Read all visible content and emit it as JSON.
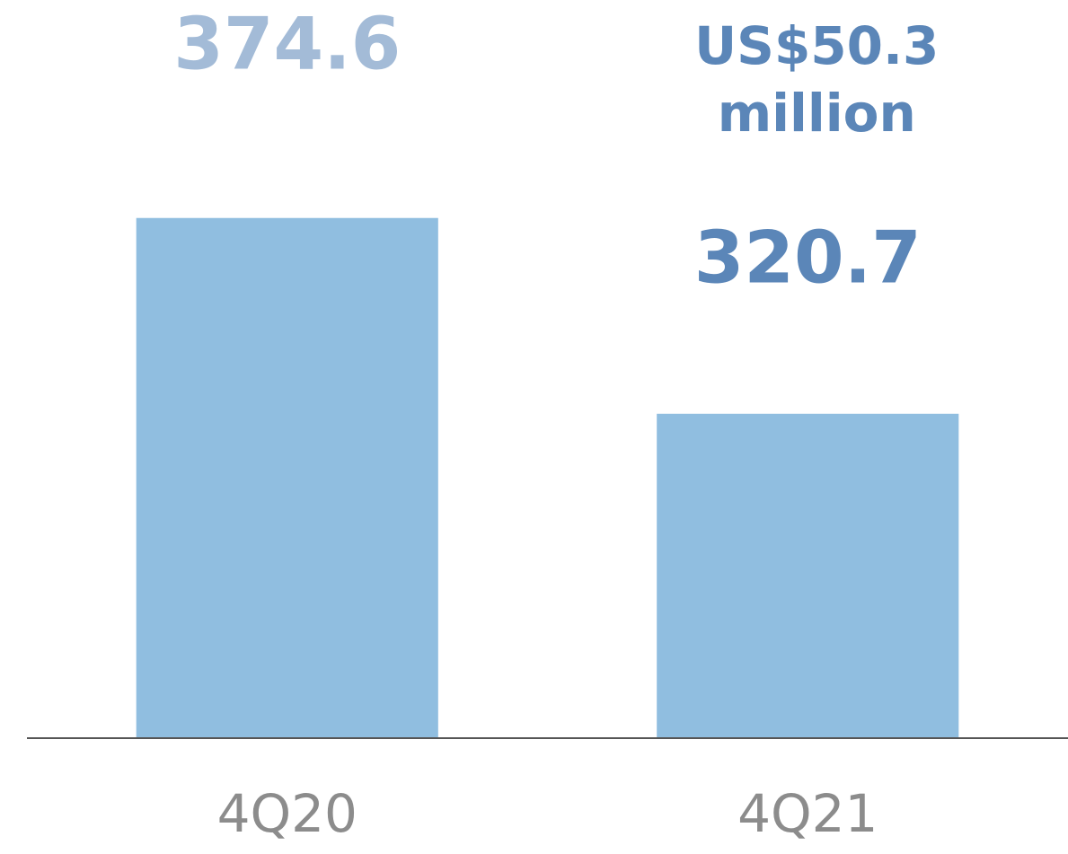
{
  "chart_data": {
    "type": "bar",
    "categories": [
      "4Q20",
      "4Q21"
    ],
    "values": [
      374.6,
      320.7
    ],
    "color": "#90bee0",
    "value_label_colors": [
      "#a3bbd7",
      "#5b86b8"
    ],
    "annotation": {
      "lines": [
        "US$50.3",
        "million"
      ],
      "color": "#5b86b8"
    },
    "ylim": [
      231.4,
      400
    ]
  }
}
